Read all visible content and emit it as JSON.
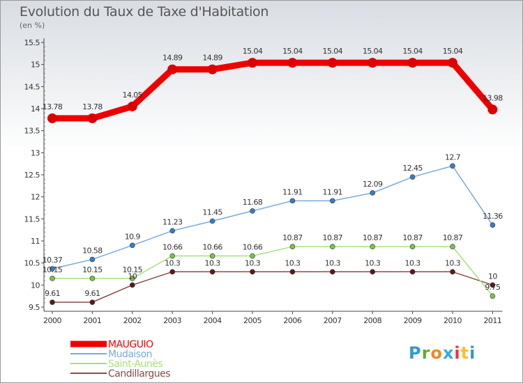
{
  "title": "Evolution du Taux de Taxe d'Habitation",
  "unit_label": "(en %)",
  "logo": {
    "letters": [
      "P",
      "r",
      "o",
      "x",
      "i",
      "t",
      "i"
    ],
    "colors": [
      "#3399cc",
      "#66aa33",
      "#ee8822",
      "#33aadd",
      "#ee3333",
      "#ffbb33",
      "#3399cc"
    ]
  },
  "chart_data": {
    "type": "line",
    "title": "Evolution du Taux de Taxe d'Habitation",
    "ylabel": "(en %)",
    "ylim": [
      9.5,
      15.5
    ],
    "yticks": [
      "9.5",
      "10",
      "10.5",
      "11",
      "11.5",
      "12",
      "12.5",
      "13",
      "13.5",
      "14",
      "14.5",
      "15",
      "15.5"
    ],
    "categories": [
      "2000",
      "2001",
      "2002",
      "2003",
      "2004",
      "2005",
      "2006",
      "2007",
      "2008",
      "2009",
      "2010",
      "2011"
    ],
    "grid": false,
    "legend": "bottom-left",
    "series": [
      {
        "name": "MAUGUIO",
        "color": "#ee0000",
        "width": 9,
        "marker": 7,
        "values": [
          13.78,
          13.78,
          14.05,
          14.89,
          14.89,
          15.04,
          15.04,
          15.04,
          15.04,
          15.04,
          15.04,
          13.98
        ],
        "labels": [
          "13.78",
          "13.78",
          "14.05",
          "14.89",
          "14.89",
          "15.04",
          "15.04",
          "15.04",
          "15.04",
          "15.04",
          "15.04",
          "13.98"
        ]
      },
      {
        "name": "Mudaison",
        "color": "#7aaad6",
        "width": 1.5,
        "marker": 3.5,
        "values": [
          10.37,
          10.58,
          10.9,
          11.23,
          11.45,
          11.68,
          11.91,
          11.91,
          12.09,
          12.45,
          12.7,
          11.36
        ],
        "labels": [
          "10.37",
          "10.58",
          "10.9",
          "11.23",
          "11.45",
          "11.68",
          "11.91",
          "11.91",
          "12.09",
          "12.45",
          "12.7",
          "11.36"
        ]
      },
      {
        "name": "Saint-Aunès",
        "color": "#a6e07a",
        "width": 1.5,
        "marker": 3.5,
        "values": [
          10.15,
          10.15,
          10.15,
          10.66,
          10.66,
          10.66,
          10.87,
          10.87,
          10.87,
          10.87,
          10.87,
          9.75
        ],
        "labels": [
          "10.15",
          "10.15",
          "10.15",
          "10.66",
          "10.66",
          "10.66",
          "10.87",
          "10.87",
          "10.87",
          "10.87",
          "10.87",
          "9.75"
        ]
      },
      {
        "name": "Candillargues",
        "color": "#8b4a4a",
        "width": 1.5,
        "marker": 3.5,
        "values": [
          9.61,
          9.61,
          10,
          10.3,
          10.3,
          10.3,
          10.3,
          10.3,
          10.3,
          10.3,
          10.3,
          10
        ],
        "labels": [
          "9.61",
          "9.61",
          "10",
          "10.3",
          "10.3",
          "10.3",
          "10.3",
          "10.3",
          "10.3",
          "10.3",
          "10.3",
          "10"
        ]
      }
    ]
  }
}
